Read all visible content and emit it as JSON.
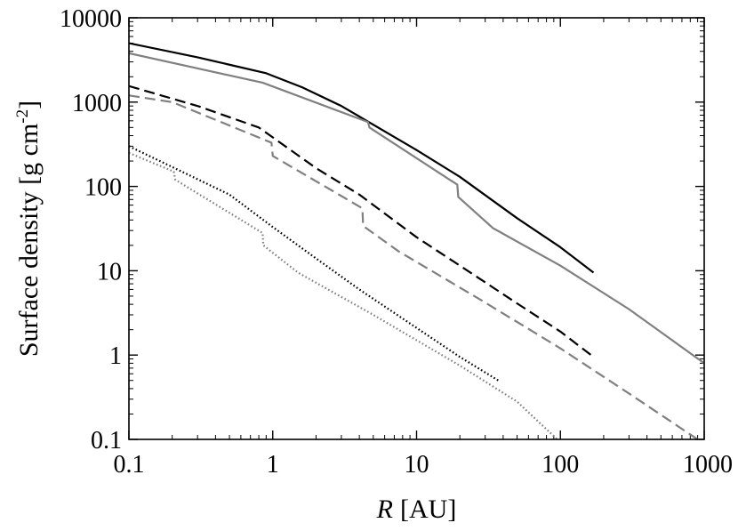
{
  "chart_data": {
    "type": "line",
    "xlabel_var": "R",
    "xlabel_unit": "[AU]",
    "ylabel": "Surface density [g cm",
    "ylabel_exp": "-2",
    "ylabel_close": "]",
    "xscale": "log",
    "yscale": "log",
    "xlim": [
      0.1,
      1000
    ],
    "ylim": [
      0.1,
      10000
    ],
    "grid": false,
    "xticks": [
      {
        "value": 0.1,
        "label": "0.1"
      },
      {
        "value": 1,
        "label": "1"
      },
      {
        "value": 10,
        "label": "10"
      },
      {
        "value": 100,
        "label": "100"
      },
      {
        "value": 1000,
        "label": "1000"
      }
    ],
    "yticks": [
      {
        "value": 0.1,
        "label": "0.1"
      },
      {
        "value": 1,
        "label": "1"
      },
      {
        "value": 10,
        "label": "10"
      },
      {
        "value": 100,
        "label": "100"
      },
      {
        "value": 1000,
        "label": "1000"
      },
      {
        "value": 10000,
        "label": "10000"
      }
    ],
    "series": [
      {
        "color": "#000000",
        "dash": "solid",
        "x": [
          0.1,
          0.3,
          0.9,
          1.6,
          3.0,
          5.0,
          10,
          20,
          50,
          100,
          170
        ],
        "y": [
          5000,
          3400,
          2200,
          1500,
          900,
          540,
          270,
          130,
          42,
          19,
          9.5
        ]
      },
      {
        "color": "#808080",
        "dash": "solid",
        "x": [
          0.1,
          0.85,
          4.6,
          4.7,
          19.2,
          19.5,
          34,
          100,
          300,
          1000
        ],
        "y": [
          3800,
          1700,
          580,
          500,
          105,
          75,
          32,
          11.5,
          3.5,
          0.8
        ]
      },
      {
        "color": "#000000",
        "dash": "dashed",
        "x": [
          0.1,
          0.3,
          0.8,
          2,
          4,
          10,
          20,
          50,
          100,
          170
        ],
        "y": [
          1550,
          900,
          500,
          165,
          80,
          25,
          11.5,
          4.1,
          1.9,
          0.95
        ]
      },
      {
        "color": "#808080",
        "dash": "dashed",
        "x": [
          0.1,
          0.2,
          0.98,
          1.0,
          4.2,
          4.25,
          7.5,
          30,
          100,
          300,
          900
        ],
        "y": [
          1200,
          1000,
          330,
          230,
          55,
          34,
          17,
          4.2,
          1.2,
          0.35,
          0.1
        ]
      },
      {
        "color": "#000000",
        "dash": "dotted",
        "x": [
          0.1,
          0.2,
          0.5,
          1,
          2,
          4,
          10,
          20,
          37
        ],
        "y": [
          300,
          170,
          80,
          33,
          14,
          6,
          2.1,
          0.95,
          0.5
        ]
      },
      {
        "color": "#808080",
        "dash": "dotted",
        "x": [
          0.1,
          0.205,
          0.21,
          0.85,
          0.86,
          1.5,
          5,
          20,
          50,
          95
        ],
        "y": [
          250,
          150,
          120,
          28,
          20,
          9.5,
          3,
          0.75,
          0.28,
          0.1
        ]
      }
    ]
  }
}
